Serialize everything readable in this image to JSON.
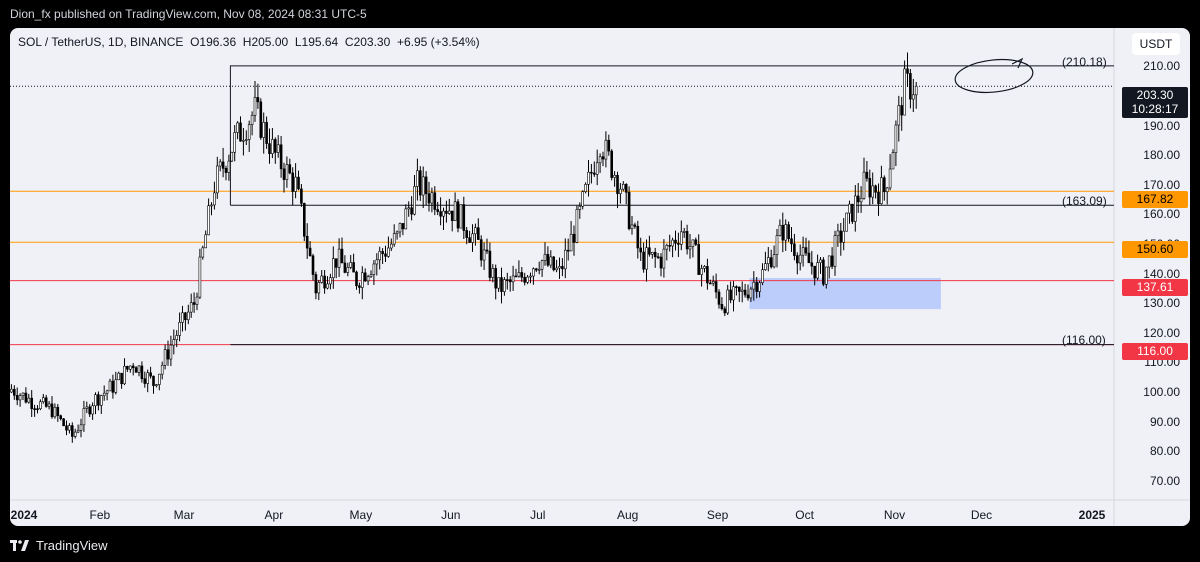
{
  "published_line": "Dion_fx published on TradingView.com, Nov 08, 2024 08:31 UTC-5",
  "legend": {
    "symbol": "SOL / TetherUS, 1D, BINANCE",
    "open": "O196.36",
    "high": "H205.00",
    "low": "L195.64",
    "close": "C203.30",
    "change": "+6.95 (+3.54%)"
  },
  "currency_button": "USDT",
  "y_axis_ticks": [
    "210.00",
    "200.00",
    "190.00",
    "180.00",
    "170.00",
    "160.00",
    "150.00",
    "140.00",
    "130.00",
    "120.00",
    "110.00",
    "100.00",
    "90.00",
    "80.00",
    "70.00"
  ],
  "price_badges": {
    "last_price": "203.30",
    "countdown": "10:28:17",
    "level_167": "167.82",
    "level_150": "150.60",
    "level_137": "137.61",
    "level_116": "116.00"
  },
  "level_labels": {
    "top_rect": "(210.18)",
    "mid_line": "(163.09)",
    "bottom_line": "(116.00)"
  },
  "x_axis_labels": [
    "2024",
    "Feb",
    "Mar",
    "Apr",
    "May",
    "Jun",
    "Jul",
    "Aug",
    "Sep",
    "Oct",
    "Nov",
    "Dec",
    "2025"
  ],
  "footer": {
    "brand": "TradingView"
  },
  "colors": {
    "orange_level": "#ff9800",
    "red_level": "#f23645",
    "zone_fill": "#b3c7fb",
    "candle": "#000000",
    "panel_bg": "#f0f1f6"
  },
  "chart_data": {
    "type": "candlestick",
    "symbol": "SOL / TetherUS",
    "timeframe": "1D",
    "exchange": "BINANCE",
    "ylim": [
      70,
      215
    ],
    "x_range": [
      "2024-01-01",
      "2025-01-05"
    ],
    "last": {
      "open": 196.36,
      "high": 205.0,
      "low": 195.64,
      "close": 203.3,
      "change": 6.95,
      "change_pct": 3.54
    },
    "horizontal_levels": [
      {
        "price": 167.82,
        "color": "orange"
      },
      {
        "price": 150.6,
        "color": "orange"
      },
      {
        "price": 137.61,
        "color": "red"
      },
      {
        "price": 116.0,
        "color": "red"
      },
      {
        "price": 163.09,
        "color": "black"
      },
      {
        "price": 116.0,
        "color": "black"
      }
    ],
    "range_box": {
      "top": 210.18,
      "bottom": 163.09
    },
    "demand_zone": {
      "top": 138.5,
      "bottom": 128
    },
    "closes_weekly_approx": [
      [
        "2024-01-01",
        101
      ],
      [
        "2024-01-08",
        97
      ],
      [
        "2024-01-15",
        94
      ],
      [
        "2024-01-22",
        85
      ],
      [
        "2024-01-29",
        97
      ],
      [
        "2024-02-05",
        102
      ],
      [
        "2024-02-12",
        110
      ],
      [
        "2024-02-19",
        103
      ],
      [
        "2024-02-26",
        118
      ],
      [
        "2024-03-04",
        130
      ],
      [
        "2024-03-11",
        170
      ],
      [
        "2024-03-18",
        185
      ],
      [
        "2024-03-25",
        195
      ],
      [
        "2024-04-01",
        180
      ],
      [
        "2024-04-08",
        170
      ],
      [
        "2024-04-15",
        135
      ],
      [
        "2024-04-22",
        145
      ],
      [
        "2024-04-29",
        138
      ],
      [
        "2024-05-06",
        145
      ],
      [
        "2024-05-13",
        152
      ],
      [
        "2024-05-20",
        170
      ],
      [
        "2024-05-27",
        165
      ],
      [
        "2024-06-03",
        160
      ],
      [
        "2024-06-10",
        150
      ],
      [
        "2024-06-17",
        135
      ],
      [
        "2024-06-24",
        138
      ],
      [
        "2024-07-01",
        145
      ],
      [
        "2024-07-08",
        140
      ],
      [
        "2024-07-15",
        160
      ],
      [
        "2024-07-22",
        185
      ],
      [
        "2024-07-29",
        170
      ],
      [
        "2024-08-05",
        145
      ],
      [
        "2024-08-12",
        145
      ],
      [
        "2024-08-19",
        155
      ],
      [
        "2024-08-26",
        142
      ],
      [
        "2024-09-02",
        130
      ],
      [
        "2024-09-09",
        133
      ],
      [
        "2024-09-16",
        140
      ],
      [
        "2024-09-23",
        155
      ],
      [
        "2024-09-30",
        145
      ],
      [
        "2024-10-07",
        140
      ],
      [
        "2024-10-14",
        155
      ],
      [
        "2024-10-21",
        170
      ],
      [
        "2024-10-28",
        168
      ],
      [
        "2024-11-04",
        203.3
      ]
    ]
  }
}
